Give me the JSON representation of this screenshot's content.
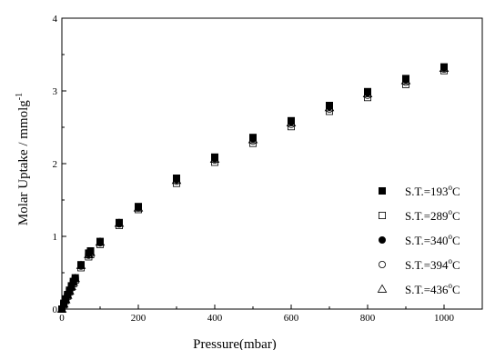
{
  "chart_data": {
    "type": "scatter",
    "title": "",
    "xlabel": "Pressure(mbar)",
    "ylabel": "Molar Uptake / mmolg",
    "ylabel_sup": "-1",
    "xlim": [
      0,
      1100
    ],
    "ylim": [
      0,
      4
    ],
    "x_ticks": [
      "0",
      "200",
      "400",
      "600",
      "800",
      "1000"
    ],
    "y_ticks": [
      "0",
      "1",
      "2",
      "3",
      "4"
    ],
    "grid": false,
    "legend_position": "bottom-right",
    "x": [
      0,
      5,
      10,
      15,
      20,
      25,
      30,
      35,
      50,
      70,
      75,
      100,
      150,
      200,
      300,
      400,
      500,
      600,
      700,
      800,
      900,
      1000
    ],
    "series": [
      {
        "name": "S.T.=193",
        "marker": "square-filled",
        "values": [
          0.0,
          0.08,
          0.14,
          0.2,
          0.26,
          0.32,
          0.38,
          0.43,
          0.61,
          0.77,
          0.8,
          0.93,
          1.19,
          1.41,
          1.8,
          2.09,
          2.36,
          2.59,
          2.8,
          2.99,
          3.17,
          3.33
        ]
      },
      {
        "name": "S.T.=289",
        "marker": "square-open",
        "values": [
          0.0,
          0.06,
          0.12,
          0.18,
          0.24,
          0.3,
          0.35,
          0.4,
          0.57,
          0.72,
          0.75,
          0.89,
          1.15,
          1.37,
          1.73,
          2.02,
          2.28,
          2.51,
          2.72,
          2.91,
          3.09,
          3.28
        ]
      },
      {
        "name": "S.T.=340",
        "marker": "circle-filled",
        "values": [
          0.0,
          0.07,
          0.13,
          0.19,
          0.25,
          0.31,
          0.37,
          0.42,
          0.6,
          0.76,
          0.79,
          0.92,
          1.18,
          1.4,
          1.78,
          2.07,
          2.34,
          2.57,
          2.78,
          2.97,
          3.15,
          3.32
        ]
      },
      {
        "name": "S.T.=394",
        "marker": "circle-open",
        "values": [
          0.0,
          0.07,
          0.13,
          0.19,
          0.25,
          0.31,
          0.36,
          0.41,
          0.59,
          0.74,
          0.77,
          0.91,
          1.17,
          1.39,
          1.76,
          2.05,
          2.31,
          2.54,
          2.75,
          2.94,
          3.12,
          3.3
        ]
      },
      {
        "name": "S.T.=436",
        "marker": "triangle-open",
        "values": [
          0.0,
          0.07,
          0.13,
          0.19,
          0.25,
          0.31,
          0.37,
          0.42,
          0.6,
          0.75,
          0.78,
          0.92,
          1.18,
          1.39,
          1.77,
          2.06,
          2.33,
          2.56,
          2.77,
          2.96,
          3.14,
          3.31
        ]
      }
    ],
    "legend_unit_sup": "o",
    "legend_unit": "C"
  }
}
